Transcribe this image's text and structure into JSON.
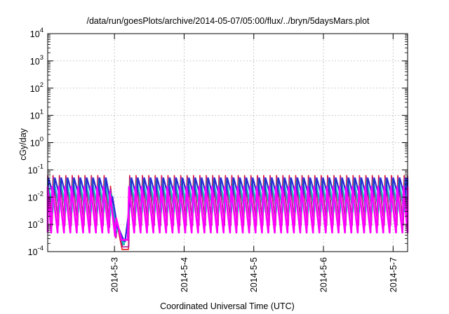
{
  "chart_data": {
    "type": "line",
    "title": "/data/run/goesPlots/archive/2014-05-07/05:00/flux/../bryn/5daysMars.plot",
    "xlabel": "Coordinated Universal Time (UTC)",
    "ylabel": "cGy/day",
    "yscale": "log",
    "ylim": [
      0.0001,
      10000
    ],
    "xlim": [
      "2014-05-02T01:00",
      "2014-05-07T05:00"
    ],
    "grid": true,
    "legend": "none",
    "y_ticks": [
      {
        "value": 0.0001,
        "base": "10",
        "exp": "-4"
      },
      {
        "value": 0.001,
        "base": "10",
        "exp": "-3"
      },
      {
        "value": 0.01,
        "base": "10",
        "exp": "-2"
      },
      {
        "value": 0.1,
        "base": "10",
        "exp": "-1"
      },
      {
        "value": 1,
        "base": "10",
        "exp": "0"
      },
      {
        "value": 10,
        "base": "10",
        "exp": "1"
      },
      {
        "value": 100,
        "base": "10",
        "exp": "2"
      },
      {
        "value": 1000,
        "base": "10",
        "exp": "3"
      },
      {
        "value": 10000,
        "base": "10",
        "exp": "4"
      }
    ],
    "x_ticks": [
      {
        "value": "2014-05-03T00:00",
        "label": "2014-5-3"
      },
      {
        "value": "2014-05-04T00:00",
        "label": "2014-5-4"
      },
      {
        "value": "2014-05-05T00:00",
        "label": "2014-5-5"
      },
      {
        "value": "2014-05-06T00:00",
        "label": "2014-5-6"
      },
      {
        "value": "2014-05-07T00:00",
        "label": "2014-5-7"
      }
    ],
    "cycle_hours": 2.2,
    "dropout": {
      "start": "2014-05-02T22:00",
      "end": "2014-05-03T05:00",
      "min": 0.0001
    },
    "series": [
      {
        "color": "#e8151b",
        "peak": 0.062,
        "trough": 0.0011,
        "phase": 0.35,
        "width": 1.6
      },
      {
        "color": "#b0179b",
        "peak": 0.055,
        "trough": 0.0009,
        "phase": 0.3,
        "width": 1.6
      },
      {
        "color": "#00a89f",
        "peak": 0.045,
        "trough": 0.0028,
        "phase": 0.2,
        "width": 1.6
      },
      {
        "color": "#17d4c9",
        "peak": 0.036,
        "trough": 0.0045,
        "phase": 0.15,
        "width": 1.6
      },
      {
        "color": "#2a2ad4",
        "peak": 0.05,
        "trough": 0.0095,
        "phase": 0.05,
        "width": 2.2
      },
      {
        "color": "#ff00ff",
        "peak": 0.024,
        "trough": 0.0005,
        "phase": 0.45,
        "width": 2.6
      }
    ]
  }
}
